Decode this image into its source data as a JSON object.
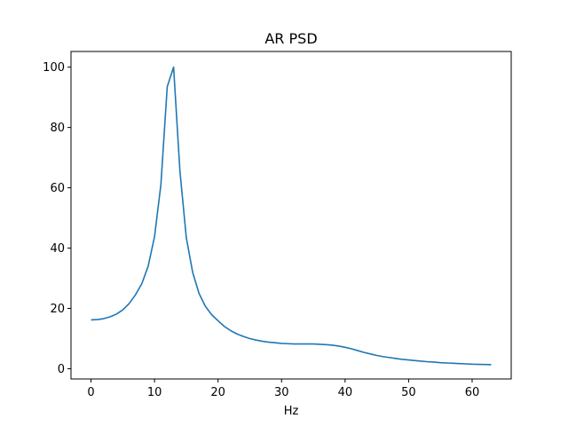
{
  "chart_data": {
    "type": "line",
    "title": "AR PSD",
    "xlabel": "Hz",
    "ylabel": "",
    "xlim": [
      -3.15,
      66.15
    ],
    "ylim": [
      -3.4,
      105.2
    ],
    "xticks": [
      0,
      10,
      20,
      30,
      40,
      50,
      60
    ],
    "yticks": [
      0,
      20,
      40,
      60,
      80,
      100
    ],
    "grid": false,
    "series": [
      {
        "color": "#1f77b4",
        "x": [
          0,
          1,
          2,
          3,
          4,
          5,
          6,
          7,
          8,
          9,
          10,
          11,
          12,
          13,
          14,
          15,
          16,
          17,
          18,
          19,
          20,
          21,
          22,
          23,
          24,
          25,
          26,
          27,
          28,
          29,
          30,
          31,
          32,
          33,
          34,
          35,
          36,
          37,
          38,
          39,
          40,
          41,
          42,
          43,
          44,
          45,
          46,
          47,
          48,
          49,
          50,
          51,
          52,
          53,
          54,
          55,
          56,
          57,
          58,
          59,
          60,
          61,
          62,
          63
        ],
        "y": [
          16.2,
          16.3,
          16.6,
          17.2,
          18.1,
          19.5,
          21.6,
          24.5,
          28.2,
          34.0,
          43.8,
          61.0,
          93.5,
          100.0,
          65.5,
          43.5,
          32.0,
          25.0,
          20.7,
          17.9,
          15.9,
          14.0,
          12.6,
          11.5,
          10.7,
          10.0,
          9.5,
          9.1,
          8.8,
          8.6,
          8.4,
          8.3,
          8.2,
          8.2,
          8.2,
          8.2,
          8.1,
          8.0,
          7.8,
          7.5,
          7.1,
          6.6,
          6.0,
          5.4,
          4.9,
          4.4,
          4.0,
          3.7,
          3.4,
          3.1,
          2.9,
          2.7,
          2.5,
          2.3,
          2.2,
          2.0,
          1.9,
          1.8,
          1.7,
          1.6,
          1.5,
          1.45,
          1.4,
          1.35
        ]
      }
    ]
  }
}
